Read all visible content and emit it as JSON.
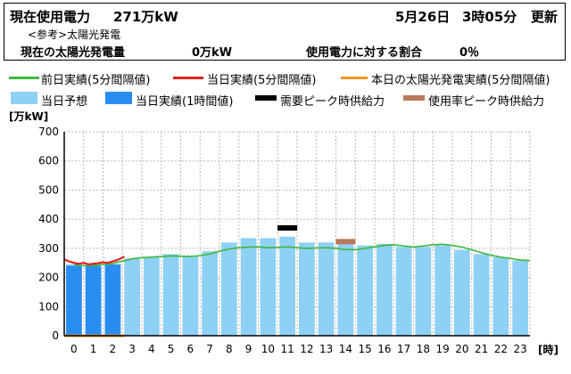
{
  "header": {
    "current_label": "現在使用電力",
    "current_value": "271万kW",
    "date": "5月26日",
    "time": "3時05分",
    "updated": "更新",
    "ref_label": "<参考>太陽光発電",
    "solar_label": "現在の太陽光発電量",
    "solar_value": "0万kW",
    "ratio_label": "使用電力に対する割合",
    "ratio_value": "0％"
  },
  "legend": [
    {
      "label": "前日実績(5分間隔値)",
      "kind": "line",
      "color": "#3cb83c"
    },
    {
      "label": "当日実績(5分間隔値)",
      "kind": "line",
      "color": "#e8201e"
    },
    {
      "label": "本日の太陽光発電実績(5分間隔値)",
      "kind": "line",
      "color": "#f0961e"
    },
    {
      "label": "当日予想",
      "kind": "box",
      "color": "#8fd0f5"
    },
    {
      "label": "当日実績(1時間値)",
      "kind": "box",
      "color": "#2a8ef0"
    },
    {
      "label": "需要ピーク時供給力",
      "kind": "line",
      "color": "#000000"
    },
    {
      "label": "使用率ピーク時供給力",
      "kind": "line",
      "color": "#b87a5a"
    }
  ],
  "chart_data": {
    "type": "bar",
    "ylabel": "[万kW]",
    "xlabel": "[時]",
    "ylim": [
      0,
      700
    ],
    "yticks": [
      0,
      100,
      200,
      300,
      400,
      500,
      600,
      700
    ],
    "categories": [
      "0",
      "1",
      "2",
      "3",
      "4",
      "5",
      "6",
      "7",
      "8",
      "9",
      "10",
      "11",
      "12",
      "13",
      "14",
      "15",
      "16",
      "17",
      "18",
      "19",
      "20",
      "21",
      "22",
      "23"
    ],
    "series": [
      {
        "name": "当日予想",
        "color": "#8fd0f5",
        "values": [
          245,
          240,
          245,
          265,
          270,
          280,
          275,
          290,
          320,
          335,
          335,
          340,
          320,
          320,
          315,
          310,
          315,
          305,
          305,
          310,
          295,
          280,
          270,
          258
        ]
      },
      {
        "name": "当日実績(1時間値)",
        "color": "#2a8ef0",
        "values": [
          240,
          240,
          245,
          null,
          null,
          null,
          null,
          null,
          null,
          null,
          null,
          null,
          null,
          null,
          null,
          null,
          null,
          null,
          null,
          null,
          null,
          null,
          null,
          null
        ]
      },
      {
        "name": "前日実績(5分間隔値)",
        "color": "#3cb83c",
        "x": [
          0,
          0.5,
          1,
          1.5,
          2,
          2.5,
          3,
          3.5,
          4,
          4.5,
          5,
          5.5,
          6,
          6.5,
          7,
          7.5,
          8,
          8.5,
          9,
          9.5,
          10,
          10.5,
          11,
          11.5,
          12,
          12.5,
          13,
          13.5,
          14,
          14.5,
          15,
          15.5,
          16,
          16.5,
          17,
          17.5,
          18,
          18.5,
          19,
          19.5,
          20,
          20.5,
          21,
          21.5,
          22,
          22.5,
          23,
          23.5
        ],
        "values": [
          245,
          240,
          242,
          244,
          248,
          256,
          264,
          268,
          270,
          272,
          274,
          273,
          272,
          275,
          280,
          290,
          298,
          302,
          304,
          305,
          302,
          303,
          305,
          302,
          300,
          301,
          302,
          300,
          296,
          295,
          300,
          305,
          310,
          312,
          308,
          304,
          308,
          312,
          314,
          310,
          304,
          295,
          285,
          276,
          270,
          265,
          260,
          258
        ]
      },
      {
        "name": "当日実績(5分間隔値)",
        "color": "#e8201e",
        "x": [
          -0.5,
          -0.25,
          0,
          0.25,
          0.5,
          0.75,
          1,
          1.25,
          1.5,
          1.75,
          2,
          2.25,
          2.5,
          2.6
        ],
        "values": [
          262,
          255,
          250,
          247,
          250,
          245,
          247,
          249,
          252,
          250,
          255,
          260,
          268,
          272
        ]
      },
      {
        "name": "本日の太陽光発電実績(5分間隔値)",
        "color": "#f0961e",
        "x": [
          -0.5,
          2.6
        ],
        "values": [
          0,
          0
        ]
      }
    ],
    "markers": [
      {
        "name": "需要ピーク時供給力",
        "hour": 11,
        "value": 370,
        "color": "#000000"
      },
      {
        "name": "使用率ピーク時供給力",
        "hour": 14,
        "value": 323,
        "color": "#b87a5a"
      }
    ],
    "grid": true
  }
}
